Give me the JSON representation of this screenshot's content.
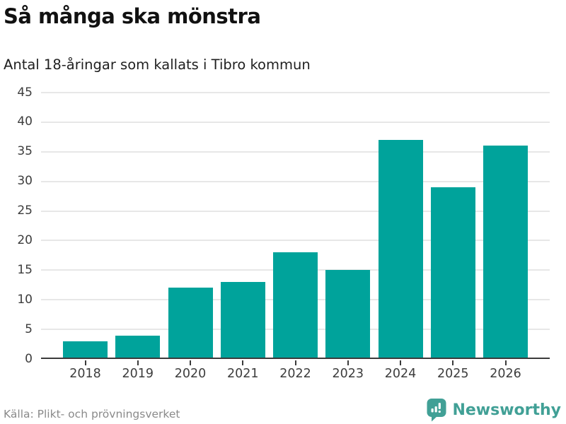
{
  "header": {
    "title": "Så många ska mönstra",
    "subtitle": "Antal 18-åringar som kallats i Tibro kommun"
  },
  "chart_data": {
    "type": "bar",
    "title": "Så många ska mönstra",
    "subtitle": "Antal 18-åringar som kallats i Tibro kommun",
    "categories": [
      "2018",
      "2019",
      "2020",
      "2021",
      "2022",
      "2023",
      "2024",
      "2025",
      "2026"
    ],
    "values": [
      3,
      4,
      12,
      13,
      18,
      15,
      37,
      29,
      36
    ],
    "xlabel": "",
    "ylabel": "",
    "ylim": [
      0,
      45
    ],
    "ytick_step": 5,
    "yticks": [
      0,
      5,
      10,
      15,
      20,
      25,
      30,
      35,
      40,
      45
    ],
    "grid": "horizontal",
    "legend": "none",
    "bar_color": "#00A39B"
  },
  "footer": {
    "source": "Källa: Plikt- och prövningsverket",
    "brand": "Newsworthy"
  },
  "colors": {
    "bar": "#00A39B",
    "brand": "#41A096",
    "grid": "#E7E7E7",
    "axis": "#3B3B3B",
    "title_text": "#111111",
    "label_text": "#3D3D3D",
    "muted_text": "#8A8A8A"
  }
}
